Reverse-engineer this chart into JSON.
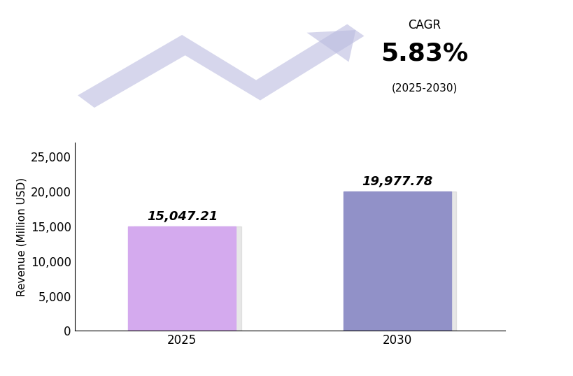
{
  "categories": [
    "2025",
    "2030"
  ],
  "values": [
    15047.21,
    19977.78
  ],
  "bar_colors": [
    "#D4AAEE",
    "#9191C8"
  ],
  "bar_labels": [
    "15,047.21",
    "19,977.78"
  ],
  "ylabel": "Revenue (Million USD)",
  "ylim": [
    0,
    27000
  ],
  "yticks": [
    0,
    5000,
    10000,
    15000,
    20000,
    25000
  ],
  "cagr_text": "5.83%",
  "cagr_label": "CAGR",
  "cagr_period": "(2025-2030)",
  "arrow_color": "#BBBCE0",
  "shadow_color": "#BBBBBB",
  "background_color": "#FFFFFF",
  "label_fontsize": 13,
  "tick_fontsize": 12
}
